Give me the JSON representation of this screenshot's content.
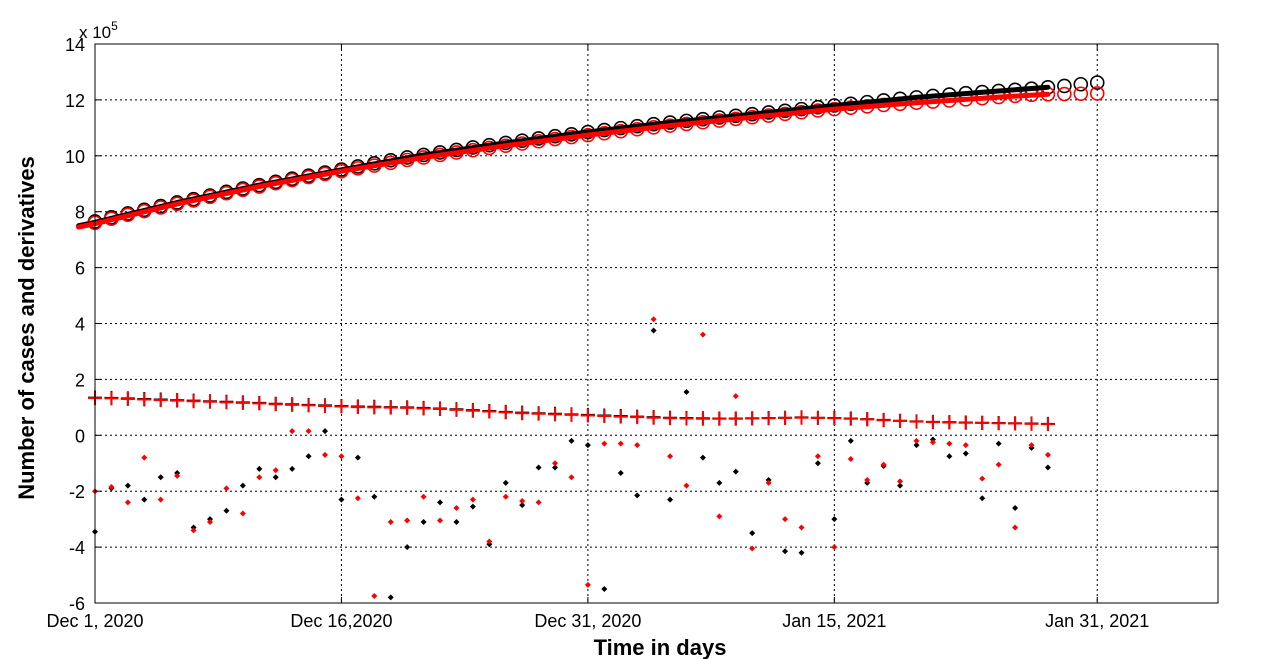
{
  "chart_data": {
    "type": "scatter",
    "title": "",
    "xlabel": "Time in days",
    "ylabel": "Number of cases and derivatives",
    "y_exponent_label": "x 10",
    "y_exponent_power": "5",
    "xlim": [
      0,
      61
    ],
    "ylim": [
      -6,
      14
    ],
    "y_scale": 100000,
    "grid": true,
    "x_ticks": [
      {
        "x": 0,
        "label": "Dec 1, 2020"
      },
      {
        "x": 15,
        "label": "Dec 16,2020"
      },
      {
        "x": 30,
        "label": "Dec 31, 2020"
      },
      {
        "x": 45,
        "label": "Jan 15, 2021"
      },
      {
        "x": 61,
        "label": "Jan 31, 2021"
      }
    ],
    "y_ticks": [
      -6,
      -4,
      -2,
      0,
      2,
      4,
      6,
      8,
      10,
      12,
      14
    ],
    "series": [
      {
        "color": "#000000",
        "marker": "circle",
        "x": [
          0,
          1,
          2,
          3,
          4,
          5,
          6,
          7,
          8,
          9,
          10,
          11,
          12,
          13,
          14,
          15,
          16,
          17,
          18,
          19,
          20,
          21,
          22,
          23,
          24,
          25,
          26,
          27,
          28,
          29,
          30,
          31,
          32,
          33,
          34,
          35,
          36,
          37,
          38,
          39,
          40,
          41,
          42,
          43,
          44,
          45,
          46,
          47,
          48,
          49,
          50,
          51,
          52,
          53,
          54,
          55,
          56,
          57,
          58,
          59,
          60,
          61
        ],
        "y": [
          7.65,
          7.8,
          7.94,
          8.07,
          8.2,
          8.33,
          8.45,
          8.58,
          8.71,
          8.83,
          8.95,
          9.07,
          9.18,
          9.29,
          9.4,
          9.51,
          9.62,
          9.73,
          9.84,
          9.94,
          10.03,
          10.12,
          10.21,
          10.3,
          10.38,
          10.46,
          10.54,
          10.62,
          10.7,
          10.77,
          10.85,
          10.92,
          10.99,
          11.06,
          11.13,
          11.19,
          11.25,
          11.31,
          11.37,
          11.43,
          11.49,
          11.55,
          11.61,
          11.67,
          11.74,
          11.8,
          11.86,
          11.92,
          11.98,
          12.04,
          12.09,
          12.14,
          12.19,
          12.24,
          12.28,
          12.32,
          12.36,
          12.4,
          12.45,
          12.5,
          12.56,
          12.62
        ]
      },
      {
        "color": "#ff0000",
        "marker": "circle",
        "x": [
          0,
          1,
          2,
          3,
          4,
          5,
          6,
          7,
          8,
          9,
          10,
          11,
          12,
          13,
          14,
          15,
          16,
          17,
          18,
          19,
          20,
          21,
          22,
          23,
          24,
          25,
          26,
          27,
          28,
          29,
          30,
          31,
          32,
          33,
          34,
          35,
          36,
          37,
          38,
          39,
          40,
          41,
          42,
          43,
          44,
          45,
          46,
          47,
          48,
          49,
          50,
          51,
          52,
          53,
          54,
          55,
          56,
          57,
          58,
          59,
          60,
          61
        ],
        "y": [
          7.6,
          7.75,
          7.89,
          8.02,
          8.15,
          8.28,
          8.4,
          8.53,
          8.66,
          8.78,
          8.9,
          9.02,
          9.13,
          9.24,
          9.35,
          9.45,
          9.55,
          9.65,
          9.75,
          9.85,
          9.94,
          10.03,
          10.12,
          10.2,
          10.28,
          10.36,
          10.44,
          10.52,
          10.6,
          10.67,
          10.74,
          10.81,
          10.88,
          10.95,
          11.02,
          11.08,
          11.14,
          11.2,
          11.26,
          11.32,
          11.38,
          11.44,
          11.5,
          11.56,
          11.62,
          11.67,
          11.72,
          11.77,
          11.82,
          11.86,
          11.9,
          11.94,
          11.98,
          12.02,
          12.06,
          12.1,
          12.14,
          12.18,
          12.2,
          12.21,
          12.22,
          12.23
        ]
      },
      {
        "color": "#000000",
        "marker": "line",
        "x": [
          -1,
          0,
          5,
          10,
          15,
          20,
          25,
          30,
          35,
          40,
          45,
          50,
          55,
          58
        ],
        "y": [
          7.5,
          7.62,
          8.33,
          8.95,
          9.5,
          10.03,
          10.46,
          10.85,
          11.19,
          11.49,
          11.8,
          12.09,
          12.32,
          12.45
        ]
      },
      {
        "color": "#ff0000",
        "marker": "line",
        "x": [
          -1,
          0,
          5,
          10,
          15,
          20,
          25,
          30,
          35,
          40,
          45,
          50,
          55,
          58
        ],
        "y": [
          7.45,
          7.57,
          8.28,
          8.9,
          9.45,
          9.94,
          10.36,
          10.74,
          11.08,
          11.38,
          11.67,
          11.9,
          12.1,
          12.2
        ]
      },
      {
        "color": "#000000",
        "marker": "plus",
        "x": [
          0,
          1,
          2,
          3,
          4,
          5,
          6,
          7,
          8,
          9,
          10,
          11,
          12,
          13,
          14,
          15,
          16,
          17,
          18,
          19,
          20,
          21,
          22,
          23,
          24,
          25,
          26,
          27,
          28,
          29,
          30,
          31,
          32,
          33,
          34,
          35,
          36,
          37,
          38,
          39,
          40,
          41,
          42,
          43,
          44,
          45,
          46,
          47,
          48,
          49,
          50,
          51,
          52,
          53,
          54,
          55,
          56,
          57,
          58
        ],
        "y": [
          1.35,
          1.34,
          1.32,
          1.3,
          1.28,
          1.26,
          1.24,
          1.22,
          1.2,
          1.18,
          1.16,
          1.13,
          1.11,
          1.09,
          1.07,
          1.05,
          1.03,
          1.02,
          1.01,
          1.0,
          0.98,
          0.96,
          0.93,
          0.9,
          0.87,
          0.84,
          0.81,
          0.79,
          0.77,
          0.75,
          0.73,
          0.71,
          0.69,
          0.67,
          0.65,
          0.63,
          0.62,
          0.61,
          0.6,
          0.6,
          0.61,
          0.62,
          0.63,
          0.64,
          0.63,
          0.62,
          0.6,
          0.58,
          0.55,
          0.52,
          0.5,
          0.48,
          0.47,
          0.46,
          0.45,
          0.44,
          0.43,
          0.42,
          0.41
        ]
      },
      {
        "color": "#ff0000",
        "marker": "plus",
        "x": [
          0,
          1,
          2,
          3,
          4,
          5,
          6,
          7,
          8,
          9,
          10,
          11,
          12,
          13,
          14,
          15,
          16,
          17,
          18,
          19,
          20,
          21,
          22,
          23,
          24,
          25,
          26,
          27,
          28,
          29,
          30,
          31,
          32,
          33,
          34,
          35,
          36,
          37,
          38,
          39,
          40,
          41,
          42,
          43,
          44,
          45,
          46,
          47,
          48,
          49,
          50,
          51,
          52,
          53,
          54,
          55,
          56,
          57,
          58
        ],
        "y": [
          1.33,
          1.32,
          1.3,
          1.28,
          1.26,
          1.24,
          1.22,
          1.2,
          1.18,
          1.16,
          1.14,
          1.11,
          1.09,
          1.07,
          1.05,
          1.03,
          1.01,
          1.0,
          0.99,
          0.98,
          0.96,
          0.94,
          0.91,
          0.88,
          0.85,
          0.82,
          0.79,
          0.77,
          0.75,
          0.73,
          0.71,
          0.69,
          0.67,
          0.65,
          0.63,
          0.61,
          0.6,
          0.59,
          0.59,
          0.59,
          0.6,
          0.61,
          0.62,
          0.63,
          0.62,
          0.61,
          0.59,
          0.57,
          0.54,
          0.51,
          0.49,
          0.47,
          0.46,
          0.45,
          0.44,
          0.43,
          0.42,
          0.41,
          0.4
        ]
      },
      {
        "color": "#000000",
        "marker": "dot",
        "x": [
          0,
          2,
          4,
          6,
          8,
          10,
          12,
          14,
          16,
          18,
          20,
          22,
          24,
          26,
          28,
          30,
          32,
          34,
          36,
          38,
          40,
          42,
          44,
          46,
          48,
          50,
          52,
          54,
          56,
          58,
          1,
          3,
          5,
          7,
          9,
          11,
          13,
          15,
          17,
          19,
          21,
          23,
          25,
          27,
          29,
          31,
          33,
          35,
          37,
          39,
          41,
          43,
          45,
          47,
          49,
          51,
          53,
          55,
          57
        ],
        "y": [
          -3.45,
          -1.8,
          -1.5,
          -3.3,
          -2.7,
          -1.2,
          -1.2,
          0.15,
          -0.8,
          -5.8,
          -3.1,
          -3.1,
          -3.9,
          -2.5,
          -1.15,
          -0.35,
          -1.35,
          3.75,
          1.55,
          -1.7,
          -3.5,
          -4.15,
          -1.0,
          -0.2,
          -1.1,
          -0.35,
          -0.75,
          -2.25,
          -2.6,
          -1.15,
          -1.9,
          -2.3,
          -1.35,
          -3.0,
          -1.8,
          -1.5,
          -0.75,
          -2.3,
          -2.2,
          -4.0,
          -2.4,
          -2.55,
          -1.7,
          -1.15,
          -0.2,
          -5.5,
          -2.15,
          -2.3,
          -0.8,
          -1.3,
          -1.6,
          -4.2,
          -3.0,
          -1.7,
          -1.8,
          -0.15,
          -0.65,
          -0.3,
          -0.45
        ]
      },
      {
        "color": "#ff0000",
        "marker": "dot",
        "x": [
          0,
          2,
          4,
          6,
          8,
          10,
          12,
          14,
          16,
          18,
          20,
          22,
          24,
          26,
          28,
          30,
          32,
          34,
          36,
          38,
          40,
          42,
          44,
          46,
          48,
          50,
          52,
          54,
          56,
          58,
          1,
          3,
          5,
          7,
          9,
          11,
          13,
          15,
          17,
          19,
          21,
          23,
          25,
          27,
          29,
          31,
          33,
          35,
          37,
          39,
          41,
          43,
          45,
          47,
          49,
          51,
          53,
          55,
          57
        ],
        "y": [
          -2.0,
          -2.4,
          -2.3,
          -3.4,
          -1.9,
          -1.5,
          0.15,
          -0.7,
          -2.25,
          -3.1,
          -2.2,
          -2.6,
          -3.8,
          -2.35,
          -1.0,
          -5.35,
          -0.3,
          4.15,
          -1.8,
          -2.9,
          -4.05,
          -3.0,
          -0.75,
          -0.85,
          -1.05,
          -0.2,
          -0.3,
          -1.55,
          -3.3,
          -0.7,
          -1.85,
          -0.8,
          -1.45,
          -3.1,
          -2.8,
          -1.25,
          0.15,
          -0.75,
          -5.75,
          -3.05,
          -3.05,
          -2.3,
          -2.2,
          -2.4,
          -1.5,
          -0.3,
          -0.35,
          -0.75,
          3.6,
          1.4,
          -1.7,
          -3.3,
          -4.0,
          -1.6,
          -1.65,
          -0.25,
          -0.35,
          -1.05,
          -0.35
        ]
      }
    ]
  }
}
